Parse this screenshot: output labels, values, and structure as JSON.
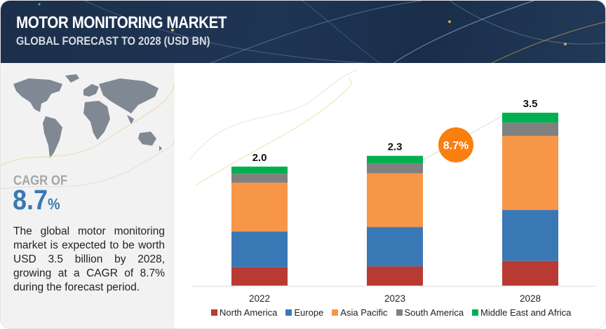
{
  "header": {
    "title": "MOTOR MONITORING MARKET",
    "subtitle": "GLOBAL FORECAST TO 2028 (USD BN)"
  },
  "left_panel": {
    "cagr_label": "CAGR OF",
    "cagr_value": "8.7",
    "cagr_unit": "%",
    "description": "The global motor monitoring market is expected to be worth USD 3.5 billion by 2028, growing at a CAGR of 8.7% during the forecast period."
  },
  "chart_data": {
    "type": "bar",
    "stacked": true,
    "title": "Motor Monitoring Market, Global Forecast to 2028 (USD BN)",
    "xlabel": "",
    "ylabel": "",
    "categories": [
      "2022",
      "2023",
      "2028"
    ],
    "totals": [
      2.0,
      2.3,
      3.5
    ],
    "total_labels": [
      "2.0",
      "2.3",
      "3.5"
    ],
    "series": [
      {
        "name": "North America",
        "color": "#b83a33",
        "values": [
          0.31,
          0.34,
          0.5
        ]
      },
      {
        "name": "Europe",
        "color": "#3a78b5",
        "values": [
          0.6,
          0.7,
          1.03
        ]
      },
      {
        "name": "Asia Pacific",
        "color": "#f79646",
        "values": [
          0.82,
          0.95,
          1.5
        ]
      },
      {
        "name": "South America",
        "color": "#808080",
        "values": [
          0.15,
          0.18,
          0.27
        ]
      },
      {
        "name": "Middle East and Africa",
        "color": "#00b050",
        "values": [
          0.12,
          0.13,
          0.2
        ]
      }
    ],
    "annotation": {
      "text": "8.7%",
      "color": "#f97f0f",
      "meaning": "CAGR 2023-2028"
    },
    "grid": false,
    "legend_position": "bottom"
  }
}
